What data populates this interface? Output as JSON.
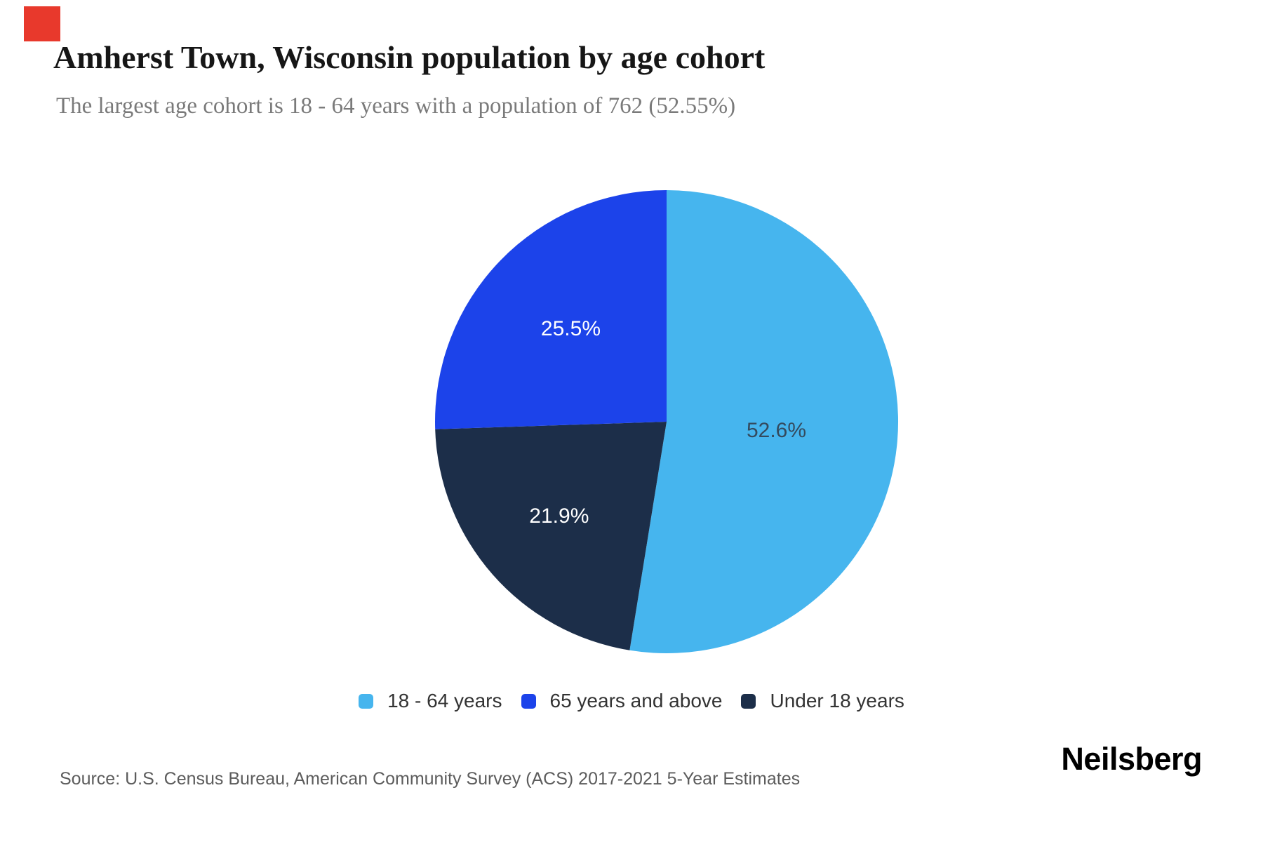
{
  "marker": {
    "color": "#e8392c"
  },
  "header": {
    "title": "Amherst Town, Wisconsin population by age cohort",
    "subtitle": "The largest age cohort is 18 - 64 years with a population of 762 (52.55%)"
  },
  "chart_data": {
    "type": "pie",
    "title": "Amherst Town, Wisconsin population by age cohort",
    "subtitle": "The largest age cohort is 18 - 64 years with a population of 762 (52.55%)",
    "largest_cohort": {
      "name": "18 - 64 years",
      "population": 762,
      "share_pct": 52.55
    },
    "slices_clockwise_from_top": [
      {
        "name": "18 - 64 years",
        "value_pct": 52.55,
        "data_label": "52.6%",
        "color": "#46b5ee",
        "data_label_color": "#344a5e"
      },
      {
        "name": "Under 18 years",
        "value_pct": 21.93,
        "data_label": "21.9%",
        "color": "#1c2e49",
        "data_label_color": "#ffffff"
      },
      {
        "name": "65 years and above",
        "value_pct": 25.52,
        "data_label": "25.5%",
        "color": "#1c43ea",
        "data_label_color": "#ffffff"
      }
    ],
    "legend": [
      {
        "label": "18 - 64 years",
        "color": "#46b5ee"
      },
      {
        "label": "65 years and above",
        "color": "#1c43ea"
      },
      {
        "label": "Under 18 years",
        "color": "#1c2e49"
      }
    ],
    "legend_position": "bottom-center"
  },
  "footer": {
    "source": "Source: U.S. Census Bureau, American Community Survey (ACS) 2017-2021 5-Year Estimates",
    "brand": "Neilsberg"
  }
}
